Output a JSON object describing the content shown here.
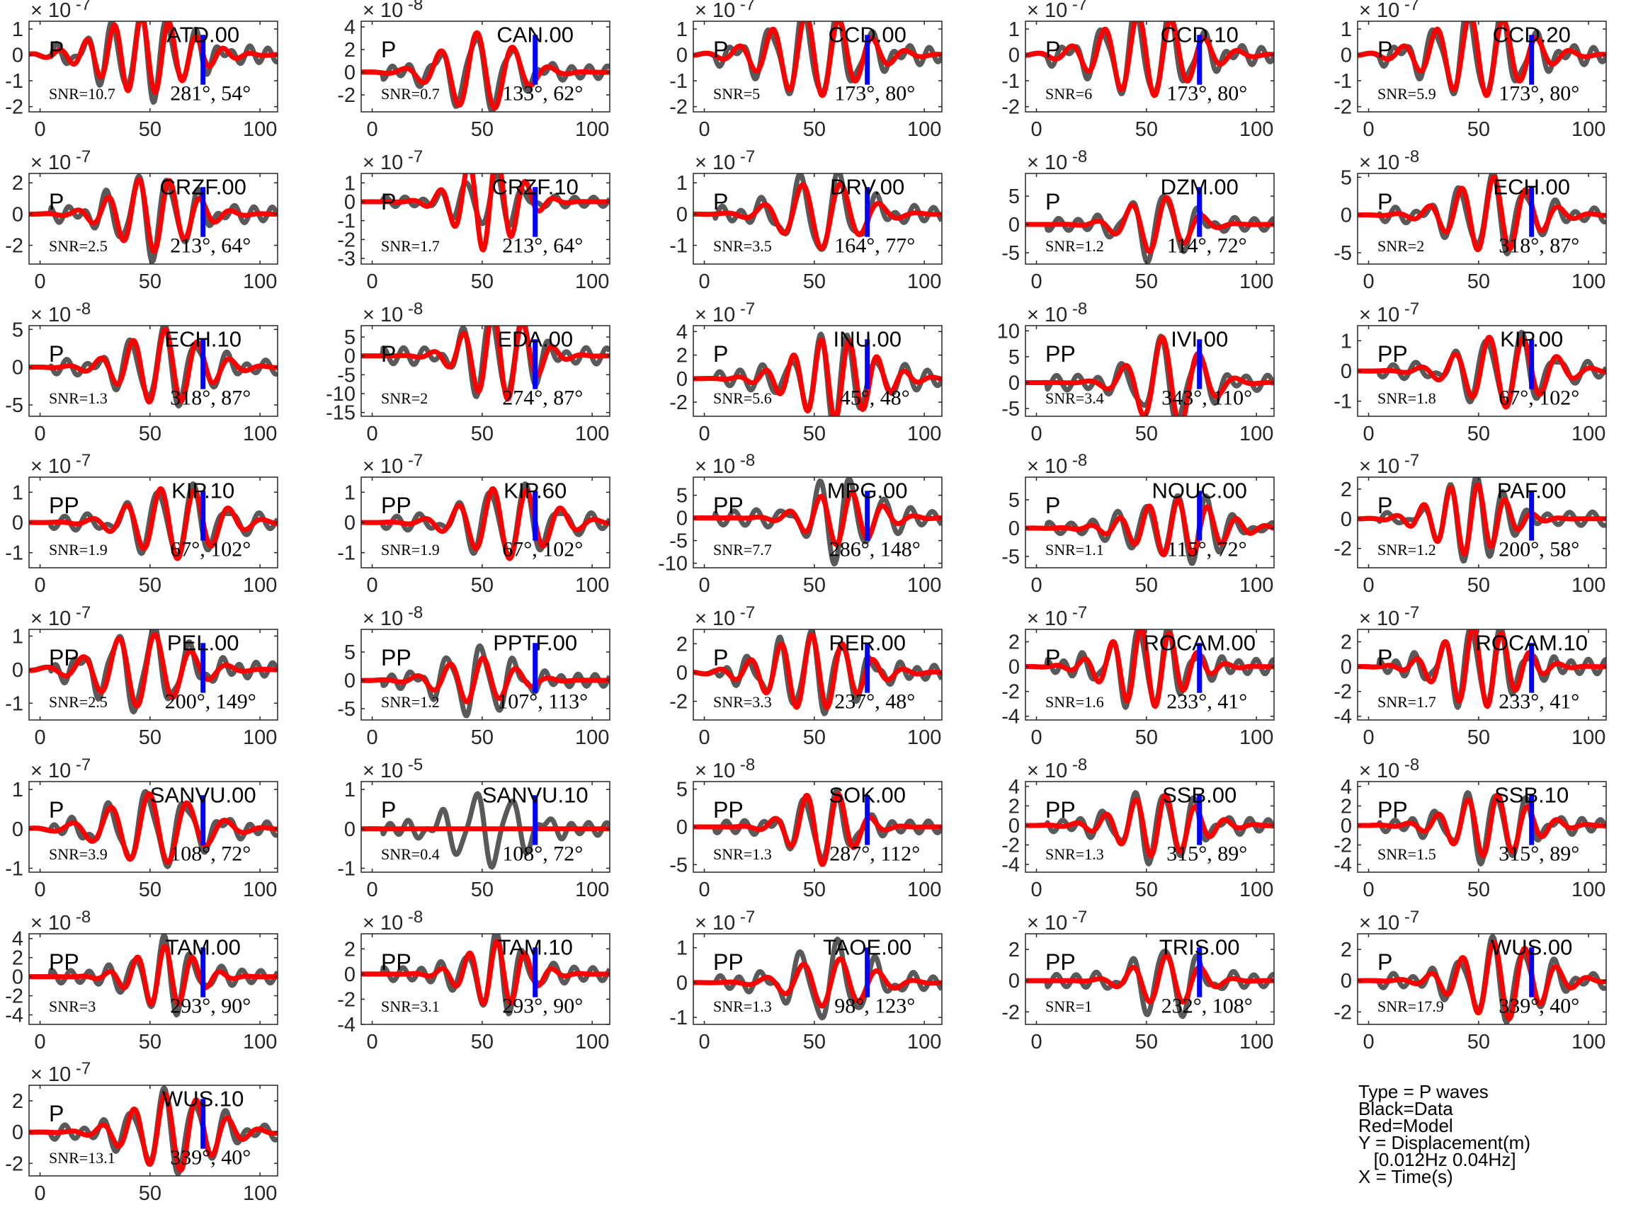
{
  "chart_data": {
    "type": "line",
    "x_ticks": [
      0,
      50,
      100
    ],
    "xlim": [
      -5,
      108
    ],
    "series_legend": {
      "data": "Black=Data",
      "model": "Red=Model"
    },
    "panels": [
      {
        "station": "ATD.00",
        "phase": "P",
        "snr": "SNR=10.7",
        "azimuth": "281°, 54°",
        "exponent": "-7",
        "yticks": [
          "1",
          "0",
          "-1",
          "-2"
        ],
        "yvals": [
          1,
          0,
          -1,
          -2
        ],
        "ylim": [
          -2.2,
          1.3
        ],
        "dataAmp": 1.6,
        "modelAmp": 1.5,
        "seed": 1
      },
      {
        "station": "CAN.00",
        "phase": "P",
        "snr": "SNR=0.7",
        "azimuth": "133°, 62°",
        "exponent": "-8",
        "yticks": [
          "4",
          "2",
          "0",
          "-2"
        ],
        "yvals": [
          4,
          2,
          0,
          -2
        ],
        "ylim": [
          -3.5,
          4.5
        ],
        "dataAmp": 3.2,
        "modelAmp": 3.5,
        "seed": 2
      },
      {
        "station": "CCD.00",
        "phase": "P",
        "snr": "SNR=5",
        "azimuth": "173°, 80°",
        "exponent": "-7",
        "yticks": [
          "1",
          "0",
          "-1",
          "-2"
        ],
        "yvals": [
          1,
          0,
          -1,
          -2
        ],
        "ylim": [
          -2.2,
          1.3
        ],
        "dataAmp": 1.7,
        "modelAmp": 1.6,
        "seed": 3
      },
      {
        "station": "CCD.10",
        "phase": "P",
        "snr": "SNR=6",
        "azimuth": "173°, 80°",
        "exponent": "-7",
        "yticks": [
          "1",
          "0",
          "-1",
          "-2"
        ],
        "yvals": [
          1,
          0,
          -1,
          -2
        ],
        "ylim": [
          -2.2,
          1.3
        ],
        "dataAmp": 1.7,
        "modelAmp": 1.6,
        "seed": 3
      },
      {
        "station": "CCD.20",
        "phase": "P",
        "snr": "SNR=5.9",
        "azimuth": "173°, 80°",
        "exponent": "-7",
        "yticks": [
          "1",
          "0",
          "-1",
          "-2"
        ],
        "yvals": [
          1,
          0,
          -1,
          -2
        ],
        "ylim": [
          -2.2,
          1.3
        ],
        "dataAmp": 1.7,
        "modelAmp": 1.6,
        "seed": 3
      },
      {
        "station": "CRZF.00",
        "phase": "P",
        "snr": "SNR=2.5",
        "azimuth": "213°, 64°",
        "exponent": "-7",
        "yticks": [
          "2",
          "0",
          "-2"
        ],
        "yvals": [
          2,
          0,
          -2
        ],
        "ylim": [
          -3.2,
          2.6
        ],
        "dataAmp": 2.6,
        "modelAmp": 2.4,
        "seed": 4
      },
      {
        "station": "CRZF.10",
        "phase": "P",
        "snr": "SNR=1.7",
        "azimuth": "213°, 64°",
        "exponent": "-7",
        "yticks": [
          "1",
          "0",
          "-1",
          "-2",
          "-3"
        ],
        "yvals": [
          1,
          0,
          -1,
          -2,
          -3
        ],
        "ylim": [
          -3.3,
          1.5
        ],
        "dataAmp": 1.4,
        "modelAmp": 2.6,
        "seed": 5
      },
      {
        "station": "DRV.00",
        "phase": "P",
        "snr": "SNR=3.5",
        "azimuth": "164°, 77°",
        "exponent": "-7",
        "yticks": [
          "1",
          "0",
          "-1"
        ],
        "yvals": [
          1,
          0,
          -1
        ],
        "ylim": [
          -1.6,
          1.3
        ],
        "dataAmp": 1.3,
        "modelAmp": 1.1,
        "seed": 6
      },
      {
        "station": "DZM.00",
        "phase": "P",
        "snr": "SNR=1.2",
        "azimuth": "114°, 72°",
        "exponent": "-8",
        "yticks": [
          "5",
          "0",
          "-5"
        ],
        "yvals": [
          5,
          0,
          -5
        ],
        "ylim": [
          -7,
          9
        ],
        "dataAmp": 6,
        "modelAmp": 5,
        "seed": 7
      },
      {
        "station": "ECH.00",
        "phase": "P",
        "snr": "SNR=2",
        "azimuth": "318°, 87°",
        "exponent": "-8",
        "yticks": [
          "5",
          "0",
          "-5"
        ],
        "yvals": [
          5,
          0,
          -5
        ],
        "ylim": [
          -6.5,
          5.5
        ],
        "dataAmp": 5,
        "modelAmp": 5,
        "seed": 8
      },
      {
        "station": "ECH.10",
        "phase": "P",
        "snr": "SNR=1.3",
        "azimuth": "318°, 87°",
        "exponent": "-8",
        "yticks": [
          "5",
          "0",
          "-5"
        ],
        "yvals": [
          5,
          0,
          -5
        ],
        "ylim": [
          -6.5,
          5.5
        ],
        "dataAmp": 5,
        "modelAmp": 5,
        "seed": 8
      },
      {
        "station": "EDA.00",
        "phase": "P",
        "snr": "SNR=2",
        "azimuth": "274°, 87°",
        "exponent": "-8",
        "yticks": [
          "5",
          "0",
          "-5",
          "-10",
          "-15"
        ],
        "yvals": [
          5,
          0,
          -5,
          -10,
          -15
        ],
        "ylim": [
          -16,
          8
        ],
        "dataAmp": 12,
        "modelAmp": 12,
        "seed": 9
      },
      {
        "station": "INU.00",
        "phase": "P",
        "snr": "SNR=5.6",
        "azimuth": "45°, 48°",
        "exponent": "-7",
        "yticks": [
          "4",
          "2",
          "0",
          "-2"
        ],
        "yvals": [
          4,
          2,
          0,
          -2
        ],
        "ylim": [
          -3.2,
          4.5
        ],
        "dataAmp": 3.6,
        "modelAmp": 3.5,
        "seed": 10
      },
      {
        "station": "IVI.00",
        "phase": "PP",
        "snr": "SNR=3.4",
        "azimuth": "343°, 110°",
        "exponent": "-8",
        "yticks": [
          "10",
          "5",
          "0",
          "-5"
        ],
        "yvals": [
          10,
          5,
          0,
          -5
        ],
        "ylim": [
          -6.5,
          11
        ],
        "dataAmp": 8,
        "modelAmp": 9,
        "seed": 11
      },
      {
        "station": "KIP.00",
        "phase": "PP",
        "snr": "SNR=1.8",
        "azimuth": "67°, 102°",
        "exponent": "-7",
        "yticks": [
          "1",
          "0",
          "-1"
        ],
        "yvals": [
          1,
          0,
          -1
        ],
        "ylim": [
          -1.5,
          1.5
        ],
        "dataAmp": 1.2,
        "modelAmp": 1.2,
        "seed": 12
      },
      {
        "station": "KIP.10",
        "phase": "PP",
        "snr": "SNR=1.9",
        "azimuth": "67°, 102°",
        "exponent": "-7",
        "yticks": [
          "1",
          "0",
          "-1"
        ],
        "yvals": [
          1,
          0,
          -1
        ],
        "ylim": [
          -1.5,
          1.5
        ],
        "dataAmp": 1.2,
        "modelAmp": 1.2,
        "seed": 12
      },
      {
        "station": "KIP.60",
        "phase": "PP",
        "snr": "SNR=1.9",
        "azimuth": "67°, 102°",
        "exponent": "-7",
        "yticks": [
          "1",
          "0",
          "-1"
        ],
        "yvals": [
          1,
          0,
          -1
        ],
        "ylim": [
          -1.5,
          1.5
        ],
        "dataAmp": 1.2,
        "modelAmp": 1.2,
        "seed": 12
      },
      {
        "station": "MPG.00",
        "phase": "PP",
        "snr": "SNR=7.7",
        "azimuth": "286°, 148°",
        "exponent": "-8",
        "yticks": [
          "5",
          "0",
          "-5",
          "-10"
        ],
        "yvals": [
          5,
          0,
          -5,
          -10
        ],
        "ylim": [
          -11,
          9
        ],
        "dataAmp": 9,
        "modelAmp": 6,
        "seed": 13
      },
      {
        "station": "NOUC.00",
        "phase": "P",
        "snr": "SNR=1.1",
        "azimuth": "115°, 72°",
        "exponent": "-8",
        "yticks": [
          "5",
          "0",
          "-5"
        ],
        "yvals": [
          5,
          0,
          -5
        ],
        "ylim": [
          -7,
          9
        ],
        "dataAmp": 6,
        "modelAmp": 5,
        "seed": 14
      },
      {
        "station": "PAF.00",
        "phase": "P",
        "snr": "SNR=1.2",
        "azimuth": "200°, 58°",
        "exponent": "-7",
        "yticks": [
          "2",
          "0",
          "-2"
        ],
        "yvals": [
          2,
          0,
          -2
        ],
        "ylim": [
          -3.3,
          2.8
        ],
        "dataAmp": 2.6,
        "modelAmp": 2.4,
        "seed": 15
      },
      {
        "station": "PEL.00",
        "phase": "PP",
        "snr": "SNR=2.5",
        "azimuth": "200°, 149°",
        "exponent": "-7",
        "yticks": [
          "1",
          "0",
          "-1"
        ],
        "yvals": [
          1,
          0,
          -1
        ],
        "ylim": [
          -1.5,
          1.2
        ],
        "dataAmp": 1.2,
        "modelAmp": 1.1,
        "seed": 16
      },
      {
        "station": "PPTF.00",
        "phase": "PP",
        "snr": "SNR=1.2",
        "azimuth": "107°, 113°",
        "exponent": "-8",
        "yticks": [
          "5",
          "0",
          "-5"
        ],
        "yvals": [
          5,
          0,
          -5
        ],
        "ylim": [
          -7,
          9
        ],
        "dataAmp": 6,
        "modelAmp": 4,
        "seed": 17
      },
      {
        "station": "RER.00",
        "phase": "P",
        "snr": "SNR=3.3",
        "azimuth": "237°, 48°",
        "exponent": "-7",
        "yticks": [
          "2",
          "0",
          "-2"
        ],
        "yvals": [
          2,
          0,
          -2
        ],
        "ylim": [
          -3.3,
          3
        ],
        "dataAmp": 2.7,
        "modelAmp": 2.6,
        "seed": 18
      },
      {
        "station": "ROCAM.00",
        "phase": "P",
        "snr": "SNR=1.6",
        "azimuth": "233°, 41°",
        "exponent": "-7",
        "yticks": [
          "2",
          "0",
          "-2",
          "-4"
        ],
        "yvals": [
          2,
          0,
          -2,
          -4
        ],
        "ylim": [
          -4.3,
          3
        ],
        "dataAmp": 3.3,
        "modelAmp": 3.3,
        "seed": 19
      },
      {
        "station": "ROCAM.10",
        "phase": "P",
        "snr": "SNR=1.7",
        "azimuth": "233°, 41°",
        "exponent": "-7",
        "yticks": [
          "2",
          "0",
          "-2",
          "-4"
        ],
        "yvals": [
          2,
          0,
          -2,
          -4
        ],
        "ylim": [
          -4.3,
          3
        ],
        "dataAmp": 3.3,
        "modelAmp": 3.3,
        "seed": 19
      },
      {
        "station": "SANVU.00",
        "phase": "P",
        "snr": "SNR=3.9",
        "azimuth": "108°, 72°",
        "exponent": "-7",
        "yticks": [
          "1",
          "0",
          "-1"
        ],
        "yvals": [
          1,
          0,
          -1
        ],
        "ylim": [
          -1.1,
          1.2
        ],
        "dataAmp": 0.9,
        "modelAmp": 0.9,
        "seed": 20
      },
      {
        "station": "SANVU.10",
        "phase": "P",
        "snr": "SNR=0.4",
        "azimuth": "108°, 72°",
        "exponent": "-5",
        "yticks": [
          "1",
          "0",
          "-1"
        ],
        "yvals": [
          1,
          0,
          -1
        ],
        "ylim": [
          -1.1,
          1.2
        ],
        "dataAmp": 0.9,
        "modelAmp": 0.01,
        "seed": 21
      },
      {
        "station": "SOK.00",
        "phase": "PP",
        "snr": "SNR=1.3",
        "azimuth": "287°, 112°",
        "exponent": "-8",
        "yticks": [
          "5",
          "0",
          "-5"
        ],
        "yvals": [
          5,
          0,
          -5
        ],
        "ylim": [
          -6,
          6
        ],
        "dataAmp": 4.5,
        "modelAmp": 5,
        "seed": 22
      },
      {
        "station": "SSB.00",
        "phase": "PP",
        "snr": "SNR=1.3",
        "azimuth": "315°, 89°",
        "exponent": "-8",
        "yticks": [
          "4",
          "2",
          "0",
          "-2",
          "-4"
        ],
        "yvals": [
          4,
          2,
          0,
          -2,
          -4
        ],
        "ylim": [
          -4.8,
          4.5
        ],
        "dataAmp": 3.6,
        "modelAmp": 3.2,
        "seed": 23
      },
      {
        "station": "SSB.10",
        "phase": "PP",
        "snr": "SNR=1.5",
        "azimuth": "315°, 89°",
        "exponent": "-8",
        "yticks": [
          "4",
          "2",
          "0",
          "-2",
          "-4"
        ],
        "yvals": [
          4,
          2,
          0,
          -2,
          -4
        ],
        "ylim": [
          -4.8,
          4.5
        ],
        "dataAmp": 3.6,
        "modelAmp": 3.2,
        "seed": 23
      },
      {
        "station": "TAM.00",
        "phase": "PP",
        "snr": "SNR=3",
        "azimuth": "293°, 90°",
        "exponent": "-8",
        "yticks": [
          "4",
          "2",
          "0",
          "-2",
          "-4"
        ],
        "yvals": [
          4,
          2,
          0,
          -2,
          -4
        ],
        "ylim": [
          -5,
          4.5
        ],
        "dataAmp": 3.8,
        "modelAmp": 3.2,
        "seed": 24
      },
      {
        "station": "TAM.10",
        "phase": "PP",
        "snr": "SNR=3.1",
        "azimuth": "293°, 90°",
        "exponent": "-8",
        "yticks": [
          "2",
          "0",
          "-2",
          "-4"
        ],
        "yvals": [
          2,
          0,
          -2,
          -4
        ],
        "ylim": [
          -4,
          3.2
        ],
        "dataAmp": 3,
        "modelAmp": 2.6,
        "seed": 24
      },
      {
        "station": "TAOE.00",
        "phase": "PP",
        "snr": "SNR=1.3",
        "azimuth": "98°, 123°",
        "exponent": "-7",
        "yticks": [
          "1",
          "0",
          "-1"
        ],
        "yvals": [
          1,
          0,
          -1
        ],
        "ylim": [
          -1.2,
          1.4
        ],
        "dataAmp": 1.1,
        "modelAmp": 0.7,
        "seed": 25
      },
      {
        "station": "TRIS.00",
        "phase": "PP",
        "snr": "SNR=1",
        "azimuth": "232°, 108°",
        "exponent": "-7",
        "yticks": [
          "2",
          "0",
          "-2"
        ],
        "yvals": [
          2,
          0,
          -2
        ],
        "ylim": [
          -2.8,
          3
        ],
        "dataAmp": 2.3,
        "modelAmp": 1.6,
        "seed": 26
      },
      {
        "station": "WUS.00",
        "phase": "P",
        "snr": "SNR=17.9",
        "azimuth": "339°, 40°",
        "exponent": "-7",
        "yticks": [
          "2",
          "0",
          "-2"
        ],
        "yvals": [
          2,
          0,
          -2
        ],
        "ylim": [
          -2.8,
          3
        ],
        "dataAmp": 2.5,
        "modelAmp": 2.5,
        "seed": 27
      },
      {
        "station": "WUS.10",
        "phase": "P",
        "snr": "SNR=13.1",
        "azimuth": "339°, 40°",
        "exponent": "-7",
        "yticks": [
          "2",
          "0",
          "-2"
        ],
        "yvals": [
          2,
          0,
          -2
        ],
        "ylim": [
          -2.8,
          3
        ],
        "dataAmp": 2.5,
        "modelAmp": 2.5,
        "seed": 27
      }
    ]
  },
  "legend": {
    "lines": [
      "Type = P waves",
      "Black=Data",
      "Red=Model",
      "Y = Displacement(m)",
      "   [0.012Hz 0.04Hz]",
      "X = Time(s)"
    ]
  },
  "colors": {
    "data": "#595959",
    "model": "#ff0000",
    "marker": "#0000ff",
    "axis": "#262626"
  }
}
